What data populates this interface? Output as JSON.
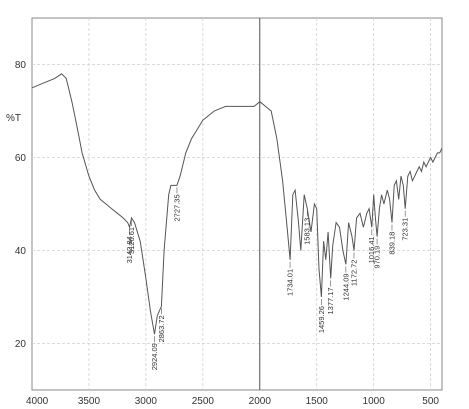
{
  "chart_data": {
    "type": "line",
    "title": "",
    "xlabel": "",
    "ylabel": "%T",
    "xlim": [
      4000,
      400
    ],
    "ylim": [
      10,
      90
    ],
    "x_ticks": [
      "4000",
      "3500",
      "3000",
      "2500",
      "2000",
      "1500",
      "1000",
      "500"
    ],
    "y_ticks": [
      "80",
      "60",
      "40",
      "20"
    ],
    "grid": true,
    "series": [
      {
        "x": [
          4000,
          3900,
          3800,
          3740,
          3700,
          3650,
          3600,
          3560,
          3500,
          3450,
          3400,
          3350,
          3300,
          3250,
          3200,
          3160,
          3142.84,
          3126.61,
          3100,
          3050,
          3000,
          2960,
          2924.09,
          2900,
          2863.72,
          2840,
          2800,
          2780,
          2727.35,
          2700,
          2650,
          2600,
          2550,
          2500,
          2450,
          2400,
          2350,
          2300,
          2250,
          2200,
          2150,
          2100,
          2050,
          2000,
          1950,
          1900,
          1850,
          1800,
          1760,
          1734.01,
          1710,
          1690,
          1660,
          1640,
          1610,
          1583.13,
          1550,
          1520,
          1500,
          1480,
          1459.26,
          1440,
          1420,
          1400,
          1377.17,
          1360,
          1330,
          1300,
          1270,
          1244.09,
          1220,
          1190,
          1172.72,
          1150,
          1120,
          1090,
          1060,
          1040,
          1016.41,
          1000,
          985,
          970.19,
          950,
          930,
          910,
          880,
          860,
          839.18,
          820,
          800,
          780,
          760,
          740,
          723.31,
          700,
          680,
          660,
          640,
          620,
          600,
          580,
          560,
          540,
          520,
          500,
          480,
          460,
          440,
          420,
          400
        ],
        "y": [
          75,
          76,
          77,
          78,
          77,
          72,
          66,
          61,
          56,
          53,
          51,
          50,
          49,
          48,
          47,
          46,
          45,
          47,
          46,
          42,
          34,
          27,
          22,
          26,
          28,
          40,
          52,
          54,
          54,
          56,
          61,
          64,
          66,
          68,
          69,
          70,
          70.5,
          71,
          71,
          71,
          71,
          71,
          71,
          72,
          71,
          70,
          64,
          55,
          45,
          38,
          52,
          53,
          46,
          40,
          52,
          49,
          44,
          50,
          49,
          36,
          30,
          42,
          38,
          44,
          34,
          41,
          46,
          45,
          40,
          37,
          46,
          43,
          40,
          47,
          48,
          45,
          48,
          49,
          45,
          52,
          47,
          43,
          49,
          52,
          50,
          53,
          51,
          46,
          54,
          55,
          51,
          56,
          54,
          49,
          56,
          57,
          55,
          56,
          57,
          58,
          57,
          59,
          58,
          59,
          60,
          59,
          60,
          61,
          61,
          62
        ]
      }
    ],
    "peaks": [
      {
        "x": 3142.84,
        "y": 45,
        "label": "3142.84"
      },
      {
        "x": 3126.61,
        "y": 47,
        "label": "3126.61"
      },
      {
        "x": 2924.09,
        "y": 22,
        "label": "2924.09"
      },
      {
        "x": 2863.72,
        "y": 28,
        "label": "2863.72"
      },
      {
        "x": 2727.35,
        "y": 54,
        "label": "2727.35"
      },
      {
        "x": 1734.01,
        "y": 38,
        "label": "1734.01"
      },
      {
        "x": 1583.13,
        "y": 49,
        "label": "1583.13"
      },
      {
        "x": 1459.26,
        "y": 30,
        "label": "1459.26"
      },
      {
        "x": 1377.17,
        "y": 34,
        "label": "1377.17"
      },
      {
        "x": 1244.09,
        "y": 37,
        "label": "1244.09"
      },
      {
        "x": 1172.72,
        "y": 40,
        "label": "1172.72"
      },
      {
        "x": 1016.41,
        "y": 45,
        "label": "1016.41"
      },
      {
        "x": 970.19,
        "y": 43,
        "label": "970.19"
      },
      {
        "x": 839.18,
        "y": 46,
        "label": "839.18"
      },
      {
        "x": 723.31,
        "y": 49,
        "label": "723.31"
      }
    ],
    "vertical_marker_x": 2000
  }
}
